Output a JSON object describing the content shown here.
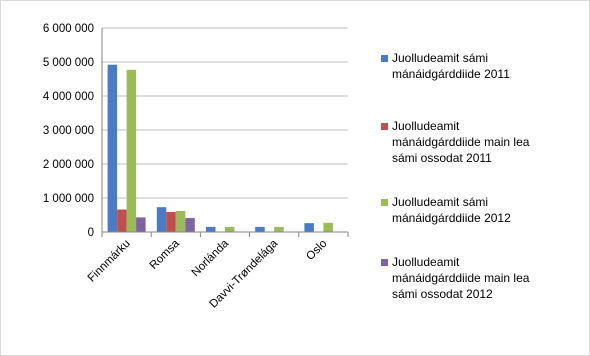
{
  "chart_data": {
    "type": "bar",
    "title": "",
    "xlabel": "",
    "ylabel": "",
    "categories": [
      "Finnmárku",
      "Romsa",
      "Norlánda",
      "Davvi-Trøndelága",
      "Oslo"
    ],
    "ylim": [
      0,
      6000000
    ],
    "yticks": [
      0,
      1000000,
      2000000,
      3000000,
      4000000,
      5000000,
      6000000
    ],
    "ytick_labels": [
      "0",
      "1 000 000",
      "2 000 000",
      "3 000 000",
      "4 000 000",
      "5 000 000",
      "6 000 000"
    ],
    "grid": "horizontal",
    "legend_position": "right",
    "series": [
      {
        "name": "Juolludeamit sámi mánáidgárddiide 2011",
        "legend_lines": [
          "Juolludeamit sámi",
          "mánáidgárddiide 2011"
        ],
        "color": "#4a7cc4",
        "values": [
          4920000,
          730000,
          150000,
          150000,
          260000
        ]
      },
      {
        "name": "Juolludeamit mánáidgárddiide main lea sámi ossodat 2011",
        "legend_lines": [
          "Juolludeamit",
          "mánáidgárddiide main lea",
          "sámi ossodat 2011"
        ],
        "color": "#c0504d",
        "values": [
          660000,
          590000,
          0,
          0,
          0
        ]
      },
      {
        "name": "Juolludeamit sámi mánáidgárddiide 2012",
        "legend_lines": [
          "Juolludeamit sámi",
          "mánáidgárddiide 2012"
        ],
        "color": "#9bbb59",
        "values": [
          4770000,
          620000,
          150000,
          150000,
          270000
        ]
      },
      {
        "name": "Juolludeamit mánáidgárddiide main lea sámi ossodat 2012",
        "legend_lines": [
          "Juolludeamit",
          "mánáidgárddiide main lea",
          "sámi ossodat 2012"
        ],
        "color": "#8064a2",
        "values": [
          430000,
          410000,
          0,
          0,
          0
        ]
      }
    ]
  }
}
